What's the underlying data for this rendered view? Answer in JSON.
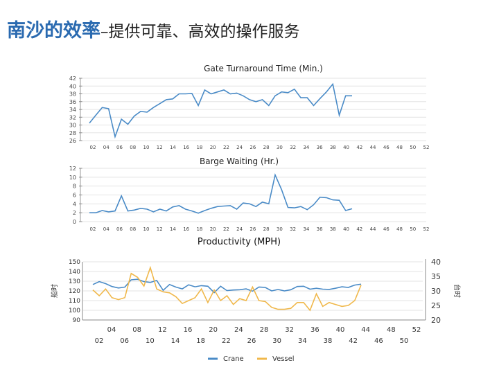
{
  "slide": {
    "title_main": "南沙的效率",
    "title_sub": "–提供可靠、高效的操作服务"
  },
  "chart_data": [
    {
      "type": "line",
      "title": "Gate Turnaround Time (Min.)",
      "xlabel": "",
      "ylabel": "",
      "x": [
        1,
        2,
        3,
        4,
        5,
        6,
        7,
        8,
        9,
        10,
        11,
        12,
        13,
        14,
        15,
        16,
        17,
        18,
        19,
        20,
        21,
        22,
        23,
        24,
        25,
        26,
        27,
        28,
        29,
        30,
        31,
        32,
        33,
        34,
        35,
        36,
        37,
        38,
        39,
        40,
        41,
        42
      ],
      "x_ticks": [
        "02",
        "04",
        "06",
        "08",
        "10",
        "12",
        "14",
        "16",
        "18",
        "20",
        "22",
        "24",
        "26",
        "28",
        "30",
        "32",
        "34",
        "36",
        "38",
        "40",
        "42",
        "44",
        "46",
        "48",
        "50",
        "52"
      ],
      "y_ticks": [
        26,
        28,
        30,
        32,
        34,
        36,
        38,
        40,
        42
      ],
      "ylim": [
        26,
        42
      ],
      "grid": true,
      "series": [
        {
          "color": "#4a8bc7",
          "values": [
            30.5,
            32.5,
            34.5,
            34.2,
            27.0,
            31.5,
            30.2,
            32.3,
            33.5,
            33.3,
            34.5,
            35.5,
            36.5,
            36.7,
            38.0,
            38.0,
            38.1,
            35.0,
            39.0,
            38.0,
            38.5,
            39.0,
            38.0,
            38.2,
            37.5,
            36.5,
            36.0,
            36.5,
            35.0,
            37.5,
            38.5,
            38.3,
            39.2,
            37.0,
            37.0,
            35.0,
            36.8,
            38.5,
            40.5,
            32.5,
            37.5,
            37.5
          ]
        }
      ]
    },
    {
      "type": "line",
      "title": "Barge Waiting (Hr.)",
      "xlabel": "",
      "ylabel": "",
      "x": [
        1,
        2,
        3,
        4,
        5,
        6,
        7,
        8,
        9,
        10,
        11,
        12,
        13,
        14,
        15,
        16,
        17,
        18,
        19,
        20,
        21,
        22,
        23,
        24,
        25,
        26,
        27,
        28,
        29,
        30,
        31,
        32,
        33,
        34,
        35,
        36,
        37,
        38,
        39,
        40,
        41,
        42
      ],
      "x_ticks": [
        "02",
        "04",
        "06",
        "08",
        "10",
        "12",
        "14",
        "16",
        "18",
        "20",
        "22",
        "24",
        "26",
        "28",
        "30",
        "32",
        "34",
        "36",
        "38",
        "40",
        "42",
        "44",
        "46",
        "48",
        "50",
        "52"
      ],
      "y_ticks": [
        0,
        2,
        4,
        6,
        8,
        10,
        12
      ],
      "ylim": [
        0,
        12
      ],
      "grid": true,
      "series": [
        {
          "color": "#4a8bc7",
          "values": [
            2.0,
            2.0,
            2.5,
            2.2,
            2.4,
            5.8,
            2.4,
            2.6,
            3.0,
            2.8,
            2.2,
            2.8,
            2.4,
            3.3,
            3.6,
            2.8,
            2.4,
            1.9,
            2.5,
            3.0,
            3.4,
            3.5,
            3.6,
            2.8,
            4.2,
            4.0,
            3.4,
            4.4,
            4.0,
            10.5,
            7.2,
            3.2,
            3.1,
            3.4,
            2.7,
            3.8,
            5.5,
            5.4,
            4.9,
            4.8,
            2.5,
            2.9
          ]
        }
      ]
    },
    {
      "type": "line",
      "title": "Productivity (MPH)",
      "xlabel": "",
      "ylabel": "船时",
      "y2label": "台时",
      "x": [
        1,
        2,
        3,
        4,
        5,
        6,
        7,
        8,
        9,
        10,
        11,
        12,
        13,
        14,
        15,
        16,
        17,
        18,
        19,
        20,
        21,
        22,
        23,
        24,
        25,
        26,
        27,
        28,
        29,
        30,
        31,
        32,
        33,
        34,
        35,
        36,
        37,
        38,
        39,
        40,
        41,
        42,
        43
      ],
      "x_ticks_top": [
        "04",
        "08",
        "12",
        "16",
        "20",
        "24",
        "28",
        "32",
        "36",
        "40",
        "44",
        "48",
        "52"
      ],
      "x_ticks_bottom": [
        "02",
        "06",
        "10",
        "14",
        "18",
        "22",
        "26",
        "30",
        "34",
        "38",
        "42",
        "46",
        "50"
      ],
      "y_ticks": [
        90,
        100,
        110,
        120,
        130,
        140,
        150
      ],
      "ylim": [
        90,
        150
      ],
      "y2_ticks": [
        20,
        25,
        30,
        35,
        40
      ],
      "y2lim": [
        20,
        40
      ],
      "grid": true,
      "legend": "bottom",
      "series": [
        {
          "name": "Crane",
          "axis": "right",
          "color": "#4a8bc7",
          "values": [
            32.2,
            33.2,
            32.5,
            31.5,
            31.0,
            31.3,
            33.8,
            34.0,
            33.2,
            32.9,
            33.6,
            30.2,
            32.2,
            31.3,
            30.7,
            32.1,
            31.4,
            31.8,
            31.6,
            29.4,
            31.6,
            30.1,
            30.3,
            30.4,
            30.7,
            29.9,
            31.3,
            31.2,
            30.0,
            30.5,
            30.0,
            30.4,
            31.5,
            31.6,
            30.6,
            30.9,
            30.6,
            30.5,
            30.9,
            31.4,
            31.2,
            32.0,
            32.3
          ]
        },
        {
          "name": "Vessel",
          "axis": "left",
          "color": "#f0b84b",
          "values": [
            121,
            115,
            122,
            113,
            111,
            113,
            138,
            134,
            125,
            144,
            122,
            119,
            118,
            114,
            107,
            110,
            113,
            122,
            108,
            121,
            110,
            115,
            106,
            112,
            110,
            124,
            110,
            109,
            103,
            101,
            101,
            102,
            108,
            108,
            100,
            117,
            104,
            108,
            106,
            104,
            105,
            110,
            126
          ]
        }
      ]
    }
  ]
}
